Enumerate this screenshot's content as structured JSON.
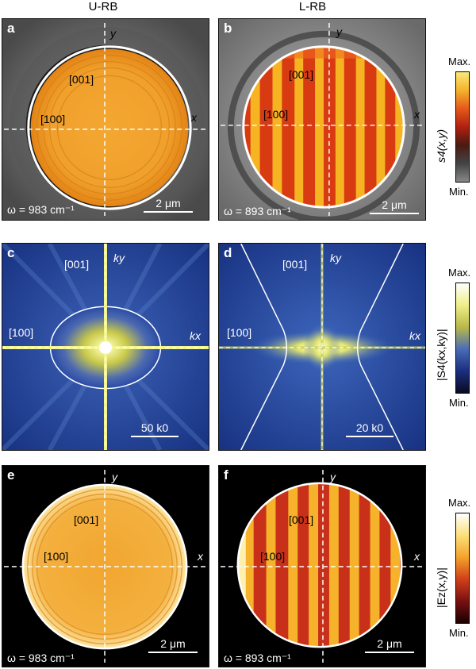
{
  "columns": {
    "left": "U-RB",
    "right": "L-RB"
  },
  "panels": {
    "a": {
      "label": "a",
      "x": "x",
      "y": "y",
      "dir1": "[001]",
      "dir2": "[100]",
      "omega": "ω = 983 cm⁻¹",
      "scale": "2 μm"
    },
    "b": {
      "label": "b",
      "x": "x",
      "y": "y",
      "dir1": "[001]",
      "dir2": "[100]",
      "omega": "ω = 893 cm⁻¹",
      "scale": "2 μm"
    },
    "c": {
      "label": "c",
      "x": "kx",
      "y": "ky",
      "dir1": "[001]",
      "dir2": "[100]",
      "scale": "50 k0"
    },
    "d": {
      "label": "d",
      "x": "kx",
      "y": "ky",
      "dir1": "[001]",
      "dir2": "[100]",
      "scale": "20 k0"
    },
    "e": {
      "label": "e",
      "x": "x",
      "y": "y",
      "dir1": "[001]",
      "dir2": "[100]",
      "omega": "ω = 983 cm⁻¹",
      "scale": "2 μm"
    },
    "f": {
      "label": "f",
      "x": "x",
      "y": "y",
      "dir1": "[001]",
      "dir2": "[100]",
      "omega": "ω = 893 cm⁻¹",
      "scale": "2 μm"
    }
  },
  "colorbars": {
    "row1": {
      "max": "Max.",
      "min": "Min.",
      "title": "s4(x,y)"
    },
    "row2": {
      "max": "Max.",
      "min": "Min.",
      "title": "|S4(kx,ky)|"
    },
    "row3": {
      "max": "Max.",
      "min": "Min.",
      "title": "|Ez(x,y)|"
    }
  }
}
